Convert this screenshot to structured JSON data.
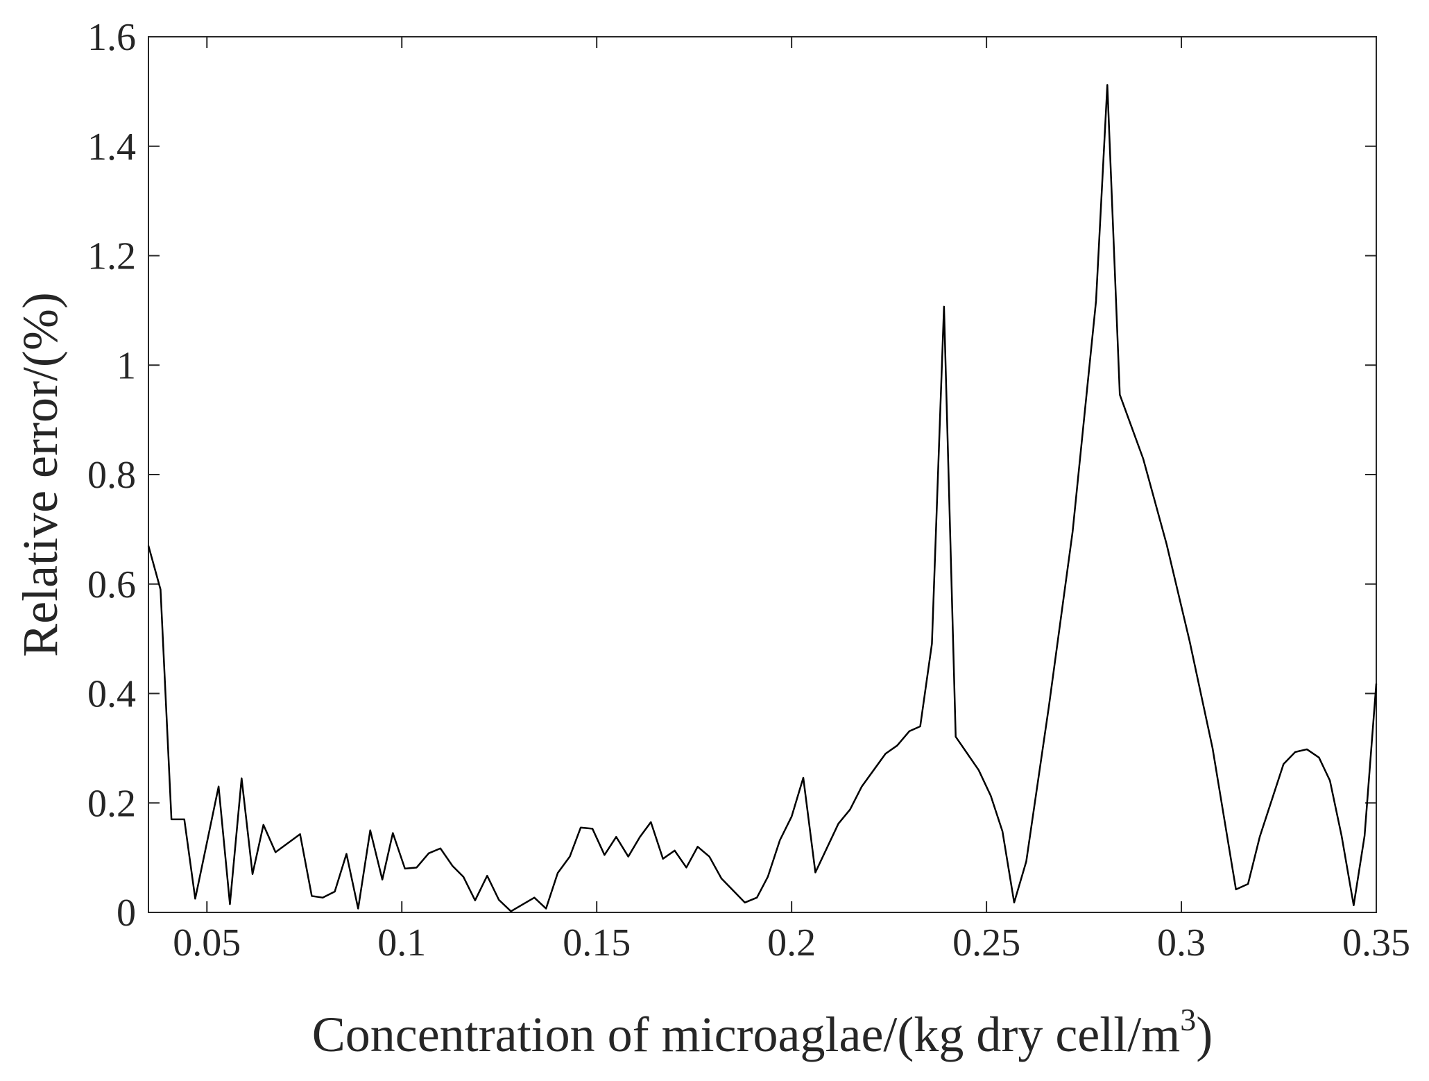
{
  "chart_data": {
    "type": "line",
    "xlabel": [
      "Concentration of microaglae/(kg dry cell/m",
      "3",
      ")"
    ],
    "ylabel": "Relative error/(%)",
    "xlim": [
      0.035,
      0.35
    ],
    "ylim": [
      0,
      1.6
    ],
    "xticks": [
      0.05,
      0.1,
      0.15,
      0.2,
      0.25,
      0.3,
      0.35
    ],
    "yticks": [
      0,
      0.2,
      0.4,
      0.6,
      0.8,
      1,
      1.2,
      1.4,
      1.6
    ],
    "series": [
      {
        "color": "#000000",
        "x": [
          0.035,
          0.0381,
          0.0409,
          0.0442,
          0.047,
          0.053,
          0.0559,
          0.0589,
          0.0617,
          0.0645,
          0.0676,
          0.0739,
          0.0769,
          0.0797,
          0.0828,
          0.0858,
          0.0888,
          0.0919,
          0.095,
          0.0977,
          0.1008,
          0.1038,
          0.1069,
          0.1099,
          0.113,
          0.1158,
          0.1188,
          0.1219,
          0.1249,
          0.128,
          0.134,
          0.137,
          0.14,
          0.1431,
          0.1459,
          0.1489,
          0.152,
          0.155,
          0.1581,
          0.1611,
          0.1639,
          0.167,
          0.17,
          0.173,
          0.1759,
          0.1789,
          0.182,
          0.188,
          0.1911,
          0.1939,
          0.197,
          0.2,
          0.203,
          0.2061,
          0.212,
          0.215,
          0.218,
          0.2241,
          0.2271,
          0.2302,
          0.233,
          0.236,
          0.2391,
          0.2421,
          0.248,
          0.2511,
          0.2541,
          0.2571,
          0.2602,
          0.266,
          0.2721,
          0.2781,
          0.281,
          0.2842,
          0.2902,
          0.2962,
          0.3021,
          0.308,
          0.314,
          0.3171,
          0.3201,
          0.3262,
          0.3292,
          0.3322,
          0.3353,
          0.3381,
          0.3411,
          0.3442,
          0.347,
          0.35
        ],
        "values": [
          0.67,
          0.59,
          0.17,
          0.17,
          0.025,
          0.23,
          0.015,
          0.245,
          0.07,
          0.16,
          0.11,
          0.143,
          0.03,
          0.027,
          0.038,
          0.107,
          0.007,
          0.15,
          0.06,
          0.145,
          0.08,
          0.082,
          0.108,
          0.117,
          0.085,
          0.065,
          0.022,
          0.067,
          0.023,
          0.002,
          0.027,
          0.007,
          0.072,
          0.102,
          0.155,
          0.153,
          0.105,
          0.138,
          0.102,
          0.138,
          0.165,
          0.098,
          0.113,
          0.082,
          0.12,
          0.102,
          0.062,
          0.018,
          0.027,
          0.065,
          0.132,
          0.175,
          0.246,
          0.073,
          0.162,
          0.188,
          0.23,
          0.29,
          0.305,
          0.331,
          0.34,
          0.491,
          1.107,
          0.321,
          0.26,
          0.213,
          0.148,
          0.018,
          0.093,
          0.376,
          0.696,
          1.117,
          1.512,
          0.946,
          0.829,
          0.673,
          0.496,
          0.3,
          0.042,
          0.052,
          0.138,
          0.271,
          0.293,
          0.298,
          0.283,
          0.241,
          0.14,
          0.013,
          0.14,
          0.418
        ]
      }
    ]
  }
}
